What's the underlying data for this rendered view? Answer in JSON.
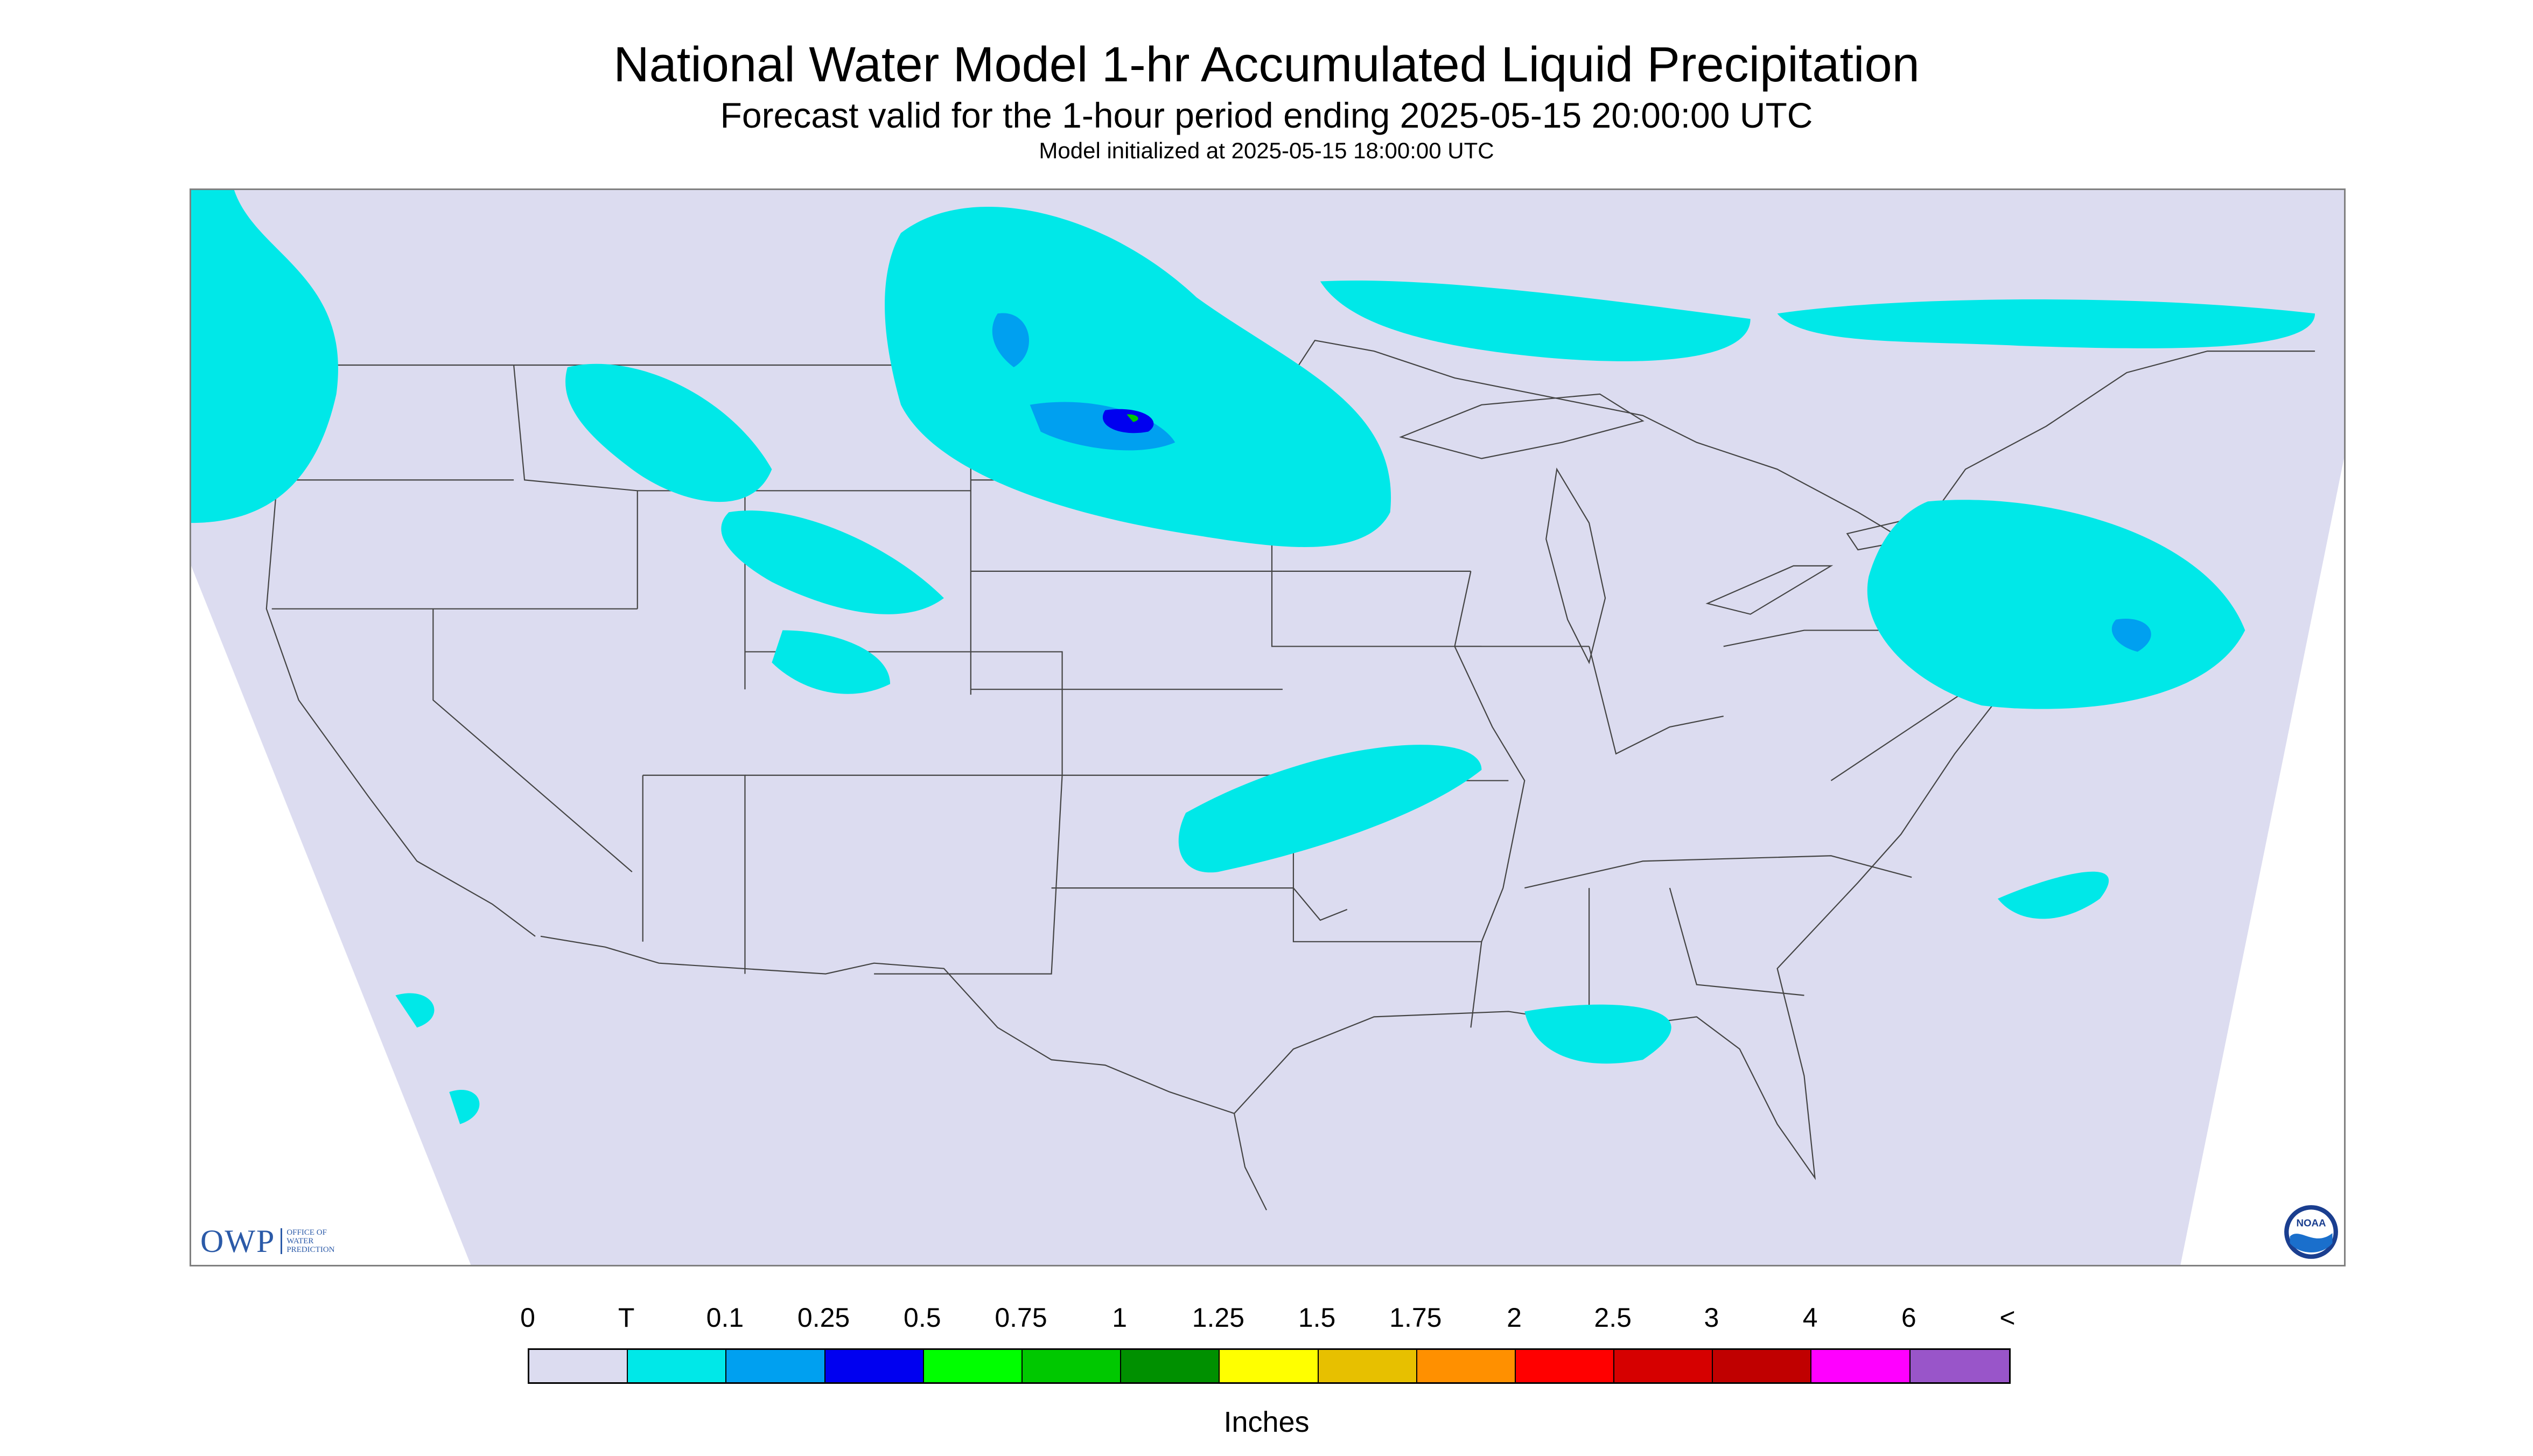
{
  "title": "National Water Model 1-hr Accumulated Liquid Precipitation",
  "subtitle": "Forecast valid for the 1-hour period ending 2025-05-15 20:00:00 UTC",
  "init_line": "Model initialized at 2025-05-15 18:00:00 UTC",
  "logos": {
    "owp_text": "OWP",
    "owp_subtitle": [
      "OFFICE OF",
      "WATER",
      "PREDICTION"
    ],
    "noaa_text": "NOAA"
  },
  "legend": {
    "labels": [
      "0",
      "T",
      "0.1",
      "0.25",
      "0.5",
      "0.75",
      "1",
      "1.25",
      "1.5",
      "1.75",
      "2",
      "2.5",
      "3",
      "4",
      "6",
      "<"
    ],
    "colors": [
      "#dcdcf0",
      "#00e8e8",
      "#00a0f0",
      "#0000f0",
      "#00ff00",
      "#00c800",
      "#009000",
      "#ffff00",
      "#e7c000",
      "#ff9000",
      "#ff0000",
      "#d60000",
      "#c00000",
      "#ff00ff",
      "#9955c9"
    ],
    "units": "Inches"
  },
  "map": {
    "background_color": "#dcdcf0",
    "precip_colors": {
      "trace": "#00e8e8",
      "light": "#00a0f0",
      "moderate": "#0000f0",
      "heavy": "#00c800"
    }
  }
}
